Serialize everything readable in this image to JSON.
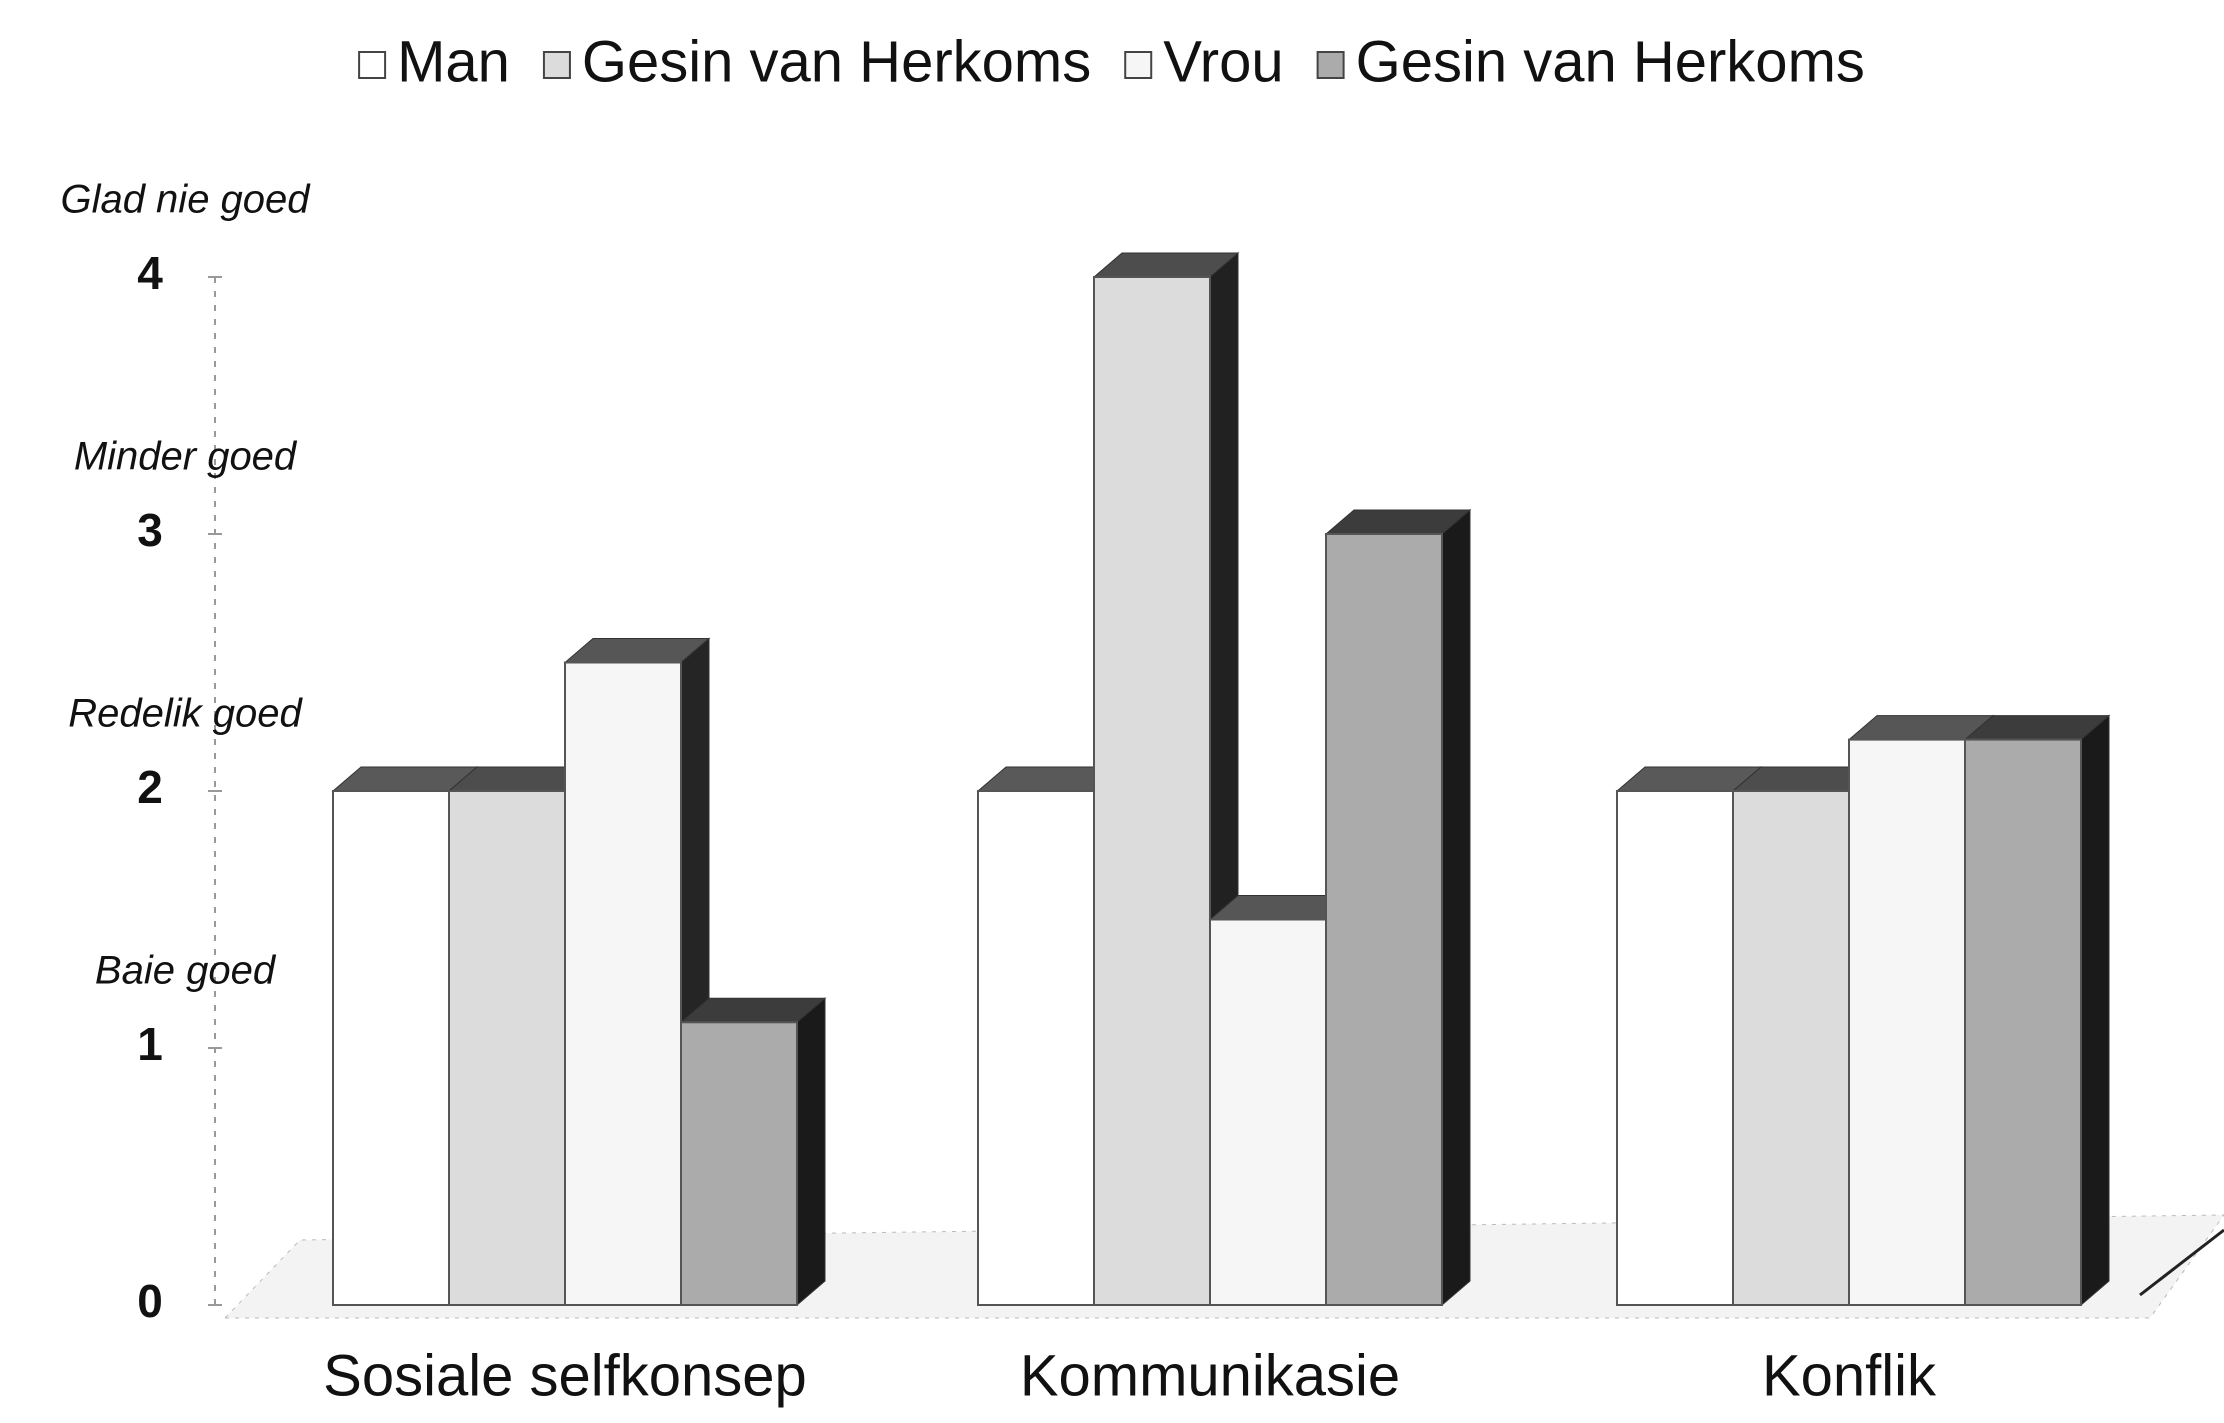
{
  "chart_data": {
    "type": "bar3d",
    "categories": [
      "Sosiale selfkonsep",
      "Kommunikasie",
      "Konflik"
    ],
    "series": [
      {
        "name": "Man",
        "color": "#ffffff",
        "values": [
          2.0,
          2.0,
          2.0
        ]
      },
      {
        "name": "Gesin van Herkoms",
        "color": "#dcdcdc",
        "values": [
          2.0,
          4.0,
          2.0
        ]
      },
      {
        "name": "Vrou",
        "color": "#f6f6f6",
        "values": [
          2.5,
          1.5,
          2.2
        ]
      },
      {
        "name": "Gesin van Herkoms",
        "color": "#ababab",
        "values": [
          1.1,
          3.0,
          2.2
        ]
      }
    ],
    "ylim": [
      0,
      4
    ],
    "yticks": [
      0,
      1,
      2,
      3,
      4
    ],
    "scale_labels": [
      "Baie goed",
      "Redelik goed",
      "Minder goed",
      "Glad nie goed"
    ],
    "legend": "top"
  }
}
